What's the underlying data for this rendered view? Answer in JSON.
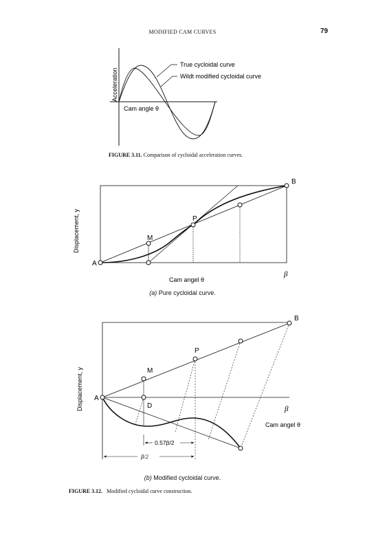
{
  "header": {
    "running_title": "MODIFIED CAM CURVES",
    "page_number": "79"
  },
  "figure_3_11": {
    "y_axis_label": "Acceleration",
    "x_axis_label": "Cam angle θ",
    "legend_true": "True cycloidal curve",
    "legend_wildt": "Wildt modified cycloidal curve",
    "caption_number": "FIGURE 3.11.",
    "caption_text": "Comparison of cycloidal acceleration curves."
  },
  "figure_3_12a": {
    "y_axis_label": "Displacement, y",
    "x_axis_label": "Cam angel θ",
    "point_a": "A",
    "point_b": "B",
    "point_m": "M",
    "point_p": "P",
    "beta_label": "β",
    "subcaption_letter": "(a)",
    "subcaption_text": "Pure cycloidal curve."
  },
  "figure_3_12b": {
    "y_axis_label": "Displacement, y",
    "x_axis_label": "Cam angel θ",
    "point_a": "A",
    "point_b": "B",
    "point_m": "M",
    "point_p": "P",
    "point_d": "D",
    "beta_label": "β",
    "dim_057": "0.57β/2",
    "dim_half": "β/2",
    "subcaption_letter": "(b)",
    "subcaption_text": "Modified cycloidal curve."
  },
  "figure_3_12": {
    "caption_number": "FIGURE 3.12.",
    "caption_text": "Modified cycloidal curve construction."
  }
}
